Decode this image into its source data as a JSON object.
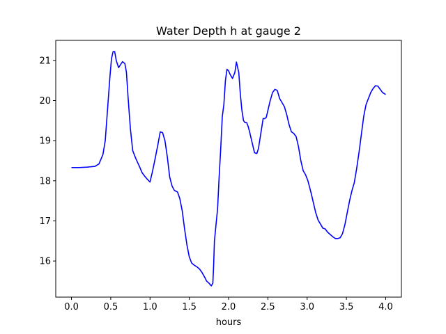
{
  "chart_data": {
    "type": "line",
    "title": "Water Depth h at gauge 2",
    "xlabel": "hours",
    "ylabel": "",
    "xlim": [
      -0.2,
      4.2
    ],
    "ylim": [
      15.1,
      21.5
    ],
    "xticks": [
      0.0,
      0.5,
      1.0,
      1.5,
      2.0,
      2.5,
      3.0,
      3.5,
      4.0
    ],
    "xtick_labels": [
      "0.0",
      "0.5",
      "1.0",
      "1.5",
      "2.0",
      "2.5",
      "3.0",
      "3.5",
      "4.0"
    ],
    "yticks": [
      16,
      17,
      18,
      19,
      20,
      21
    ],
    "ytick_labels": [
      "16",
      "17",
      "18",
      "19",
      "20",
      "21"
    ],
    "grid": false,
    "series": [
      {
        "color": "#0000ff",
        "x": [
          0.0,
          0.1,
          0.2,
          0.3,
          0.35,
          0.4,
          0.43,
          0.46,
          0.49,
          0.51,
          0.53,
          0.55,
          0.57,
          0.6,
          0.62,
          0.65,
          0.68,
          0.7,
          0.72,
          0.75,
          0.78,
          0.82,
          0.86,
          0.9,
          0.93,
          0.96,
          1.0,
          1.03,
          1.06,
          1.1,
          1.13,
          1.16,
          1.19,
          1.22,
          1.25,
          1.28,
          1.31,
          1.35,
          1.38,
          1.41,
          1.44,
          1.47,
          1.5,
          1.53,
          1.56,
          1.6,
          1.63,
          1.66,
          1.7,
          1.72,
          1.75,
          1.78,
          1.8,
          1.81,
          1.82,
          1.84,
          1.86,
          1.88,
          1.9,
          1.92,
          1.94,
          1.96,
          1.98,
          2.0,
          2.02,
          2.05,
          2.08,
          2.1,
          2.13,
          2.15,
          2.17,
          2.19,
          2.21,
          2.23,
          2.25,
          2.27,
          2.3,
          2.33,
          2.36,
          2.38,
          2.4,
          2.42,
          2.44,
          2.46,
          2.48,
          2.5,
          2.53,
          2.56,
          2.59,
          2.62,
          2.65,
          2.68,
          2.71,
          2.74,
          2.77,
          2.8,
          2.83,
          2.86,
          2.89,
          2.92,
          2.95,
          2.98,
          3.01,
          3.05,
          3.08,
          3.11,
          3.14,
          3.17,
          3.2,
          3.23,
          3.26,
          3.3,
          3.33,
          3.36,
          3.39,
          3.42,
          3.45,
          3.48,
          3.51,
          3.54,
          3.57,
          3.6,
          3.63,
          3.66,
          3.69,
          3.72,
          3.75,
          3.78,
          3.81,
          3.84,
          3.87,
          3.9,
          3.93,
          3.96,
          4.0
        ],
        "y": [
          18.33,
          18.33,
          18.34,
          18.36,
          18.42,
          18.65,
          19.0,
          19.8,
          20.6,
          21.05,
          21.22,
          21.22,
          21.0,
          20.82,
          20.88,
          20.97,
          20.92,
          20.7,
          20.1,
          19.3,
          18.75,
          18.55,
          18.38,
          18.2,
          18.12,
          18.05,
          17.97,
          18.22,
          18.5,
          18.9,
          19.22,
          19.2,
          19.0,
          18.6,
          18.1,
          17.87,
          17.76,
          17.72,
          17.55,
          17.25,
          16.8,
          16.4,
          16.1,
          15.95,
          15.9,
          15.85,
          15.8,
          15.72,
          15.58,
          15.5,
          15.45,
          15.38,
          15.45,
          15.9,
          16.5,
          16.9,
          17.3,
          18.1,
          18.8,
          19.6,
          19.9,
          20.5,
          20.78,
          20.74,
          20.65,
          20.55,
          20.7,
          20.96,
          20.7,
          20.15,
          19.75,
          19.5,
          19.45,
          19.45,
          19.35,
          19.2,
          18.95,
          18.7,
          18.68,
          18.8,
          19.05,
          19.3,
          19.55,
          19.55,
          19.58,
          19.75,
          20.0,
          20.2,
          20.28,
          20.25,
          20.05,
          19.95,
          19.85,
          19.65,
          19.4,
          19.22,
          19.18,
          19.1,
          18.85,
          18.5,
          18.25,
          18.15,
          18.0,
          17.7,
          17.45,
          17.2,
          17.02,
          16.92,
          16.82,
          16.8,
          16.72,
          16.65,
          16.6,
          16.56,
          16.56,
          16.58,
          16.68,
          16.9,
          17.2,
          17.5,
          17.75,
          17.95,
          18.3,
          18.7,
          19.15,
          19.6,
          19.9,
          20.05,
          20.2,
          20.3,
          20.37,
          20.36,
          20.28,
          20.2,
          20.15
        ]
      }
    ]
  }
}
